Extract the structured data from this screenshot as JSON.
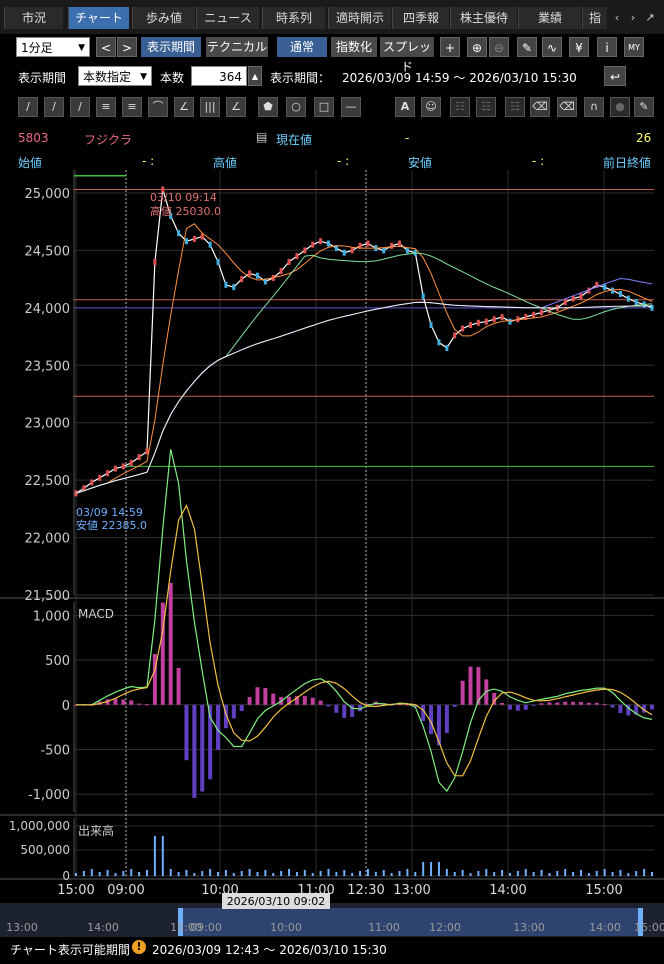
{
  "tabs": [
    "市況",
    "チャート",
    "歩み値",
    "ニュース",
    "時系列",
    "適時開示",
    "四季報",
    "株主優待",
    "業績",
    "指"
  ],
  "active_tab": 1,
  "toolbar": {
    "interval": "1分足",
    "period_button": "表示期間",
    "technical_button": "テクニカル",
    "normal_button": "通常",
    "index_button": "指数化",
    "spread_button": "スプレッド",
    "display_period_label": "表示期間",
    "count_mode": "本数指定",
    "count_label": "本数",
    "count_value": "364",
    "range_label": "表示期間：",
    "range_value": "2026/03/09 14:59 〜 2026/03/10 15:30"
  },
  "stock": {
    "code": "5803",
    "name": "フジクラ",
    "current_label": "現在値",
    "current_value": "-",
    "right_value": "26",
    "open_label": "始値",
    "open_value": "-  :",
    "high_label": "高値",
    "high_value": "-  :",
    "low_label": "安値",
    "low_value": "-  :",
    "prev_label": "前日終値"
  },
  "annotations": {
    "high_time": "03/10 09:14",
    "high_text": "高値 25030.0",
    "low_time": "03/09 14:59",
    "low_text": "安値 22385.0"
  },
  "panels": {
    "macd_label": "MACD",
    "volume_label": "出来高"
  },
  "chart_data": {
    "type": "line",
    "price_axis": {
      "ylim": [
        21500,
        25200
      ],
      "ticks": [
        "25,000",
        "24,500",
        "24,000",
        "23,500",
        "23,000",
        "22,500",
        "22,000",
        "21,500"
      ]
    },
    "macd_axis": {
      "ylim": [
        -1200,
        1150
      ],
      "ticks": [
        "1,000",
        "500",
        "0",
        "-500",
        "-1,000"
      ]
    },
    "volume_axis": {
      "ticks": [
        "1,000,000",
        "500,000",
        "0"
      ]
    },
    "x_ticks": [
      "15:00",
      "09:00",
      "10:00",
      "11:00",
      "12:30",
      "13:00",
      "14:00",
      "15:00"
    ],
    "nav_ticks": [
      "13:00",
      "14:00",
      "15:00",
      "09:00",
      "10:00",
      "11:00",
      "12:00",
      "13:00",
      "14:00",
      "15:00"
    ],
    "nav_cursor_label": "2026/03/10 09:02",
    "price": [
      22385,
      22430,
      22480,
      22520,
      22560,
      22600,
      22620,
      22650,
      22700,
      22750,
      24400,
      25030,
      24800,
      24650,
      24580,
      24600,
      24620,
      24550,
      24400,
      24200,
      24180,
      24250,
      24300,
      24280,
      24230,
      24260,
      24320,
      24400,
      24450,
      24500,
      24550,
      24580,
      24560,
      24520,
      24480,
      24500,
      24540,
      24560,
      24520,
      24500,
      24540,
      24560,
      24500,
      24480,
      24100,
      23850,
      23700,
      23650,
      23760,
      23820,
      23850,
      23870,
      23880,
      23900,
      23920,
      23880,
      23900,
      23920,
      23940,
      23960,
      23980,
      24000,
      24050,
      24080,
      24100,
      24150,
      24200,
      24180,
      24150,
      24120,
      24080,
      24050,
      24030,
      24000
    ]
  },
  "footer": {
    "label": "チャート表示可能期間",
    "value": "2026/03/09 12:43 〜 2026/03/10 15:30"
  },
  "colors": {
    "accent": "#3b6fb0",
    "red_text": "#e06060",
    "cyan": "#6fd0ff",
    "yellow": "#ffff66"
  }
}
